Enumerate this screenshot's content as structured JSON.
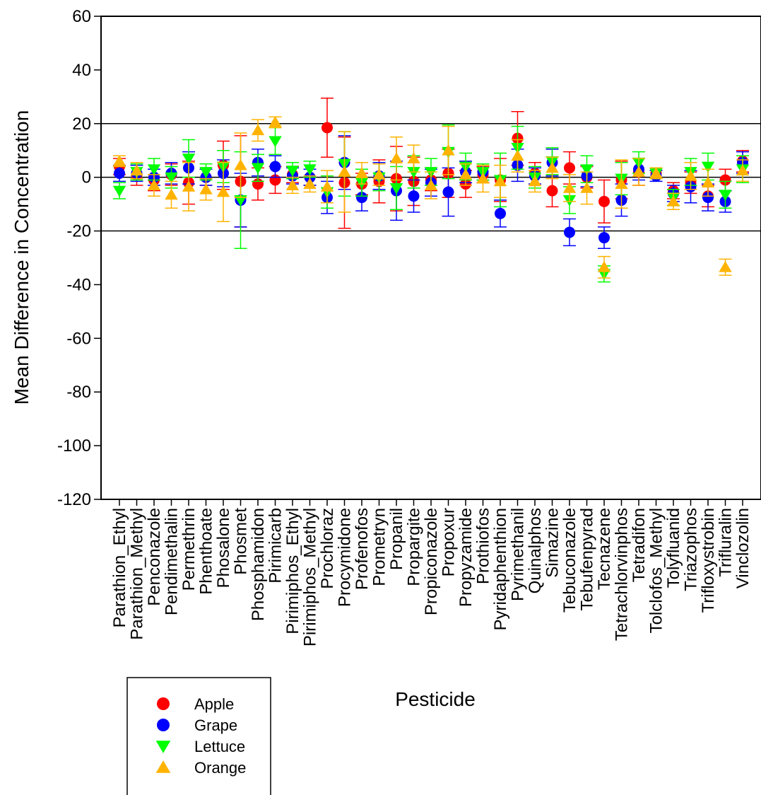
{
  "chart_data": {
    "type": "scatter",
    "xlabel": "Pesticide",
    "ylabel": "Mean Difference in Concentration",
    "ylim": [
      -120,
      60
    ],
    "yticks": [
      60,
      40,
      20,
      0,
      -20,
      -40,
      -60,
      -80,
      -100,
      -120
    ],
    "reference_lines": [
      20,
      0,
      -20
    ],
    "legend_position": "bottom-left",
    "categories": [
      "Parathion_Ethyl",
      "Parathion_Methyl",
      "Penconazole",
      "Pendimethalin",
      "Permethrin",
      "Phenthoate",
      "Phosalone",
      "Phosmet",
      "Phosphamidon",
      "Pirimicarb",
      "Pirimiphos_Ethyl",
      "Pirimiphos_Methyl",
      "Prochloraz",
      "Procymidone",
      "Profenofos",
      "Prometryn",
      "Propanil",
      "Propargite",
      "Propiconazole",
      "Propoxur",
      "Propyzamide",
      "Prothiofos",
      "Pyridaphenthion",
      "Pyrimethanil",
      "Quinalphos",
      "Simazine",
      "Tebuconazole",
      "Tebufenpyrad",
      "Tecnazene",
      "Tetrachlorvinphos",
      "Tetradifon",
      "Tolclofos_Methyl",
      "Tolyfluanid",
      "Triazophos",
      "Trifloxystrobin",
      "Trifluralin",
      "Vinclozolin"
    ],
    "series": [
      {
        "name": "Apple",
        "color": "#ff0000",
        "marker": "circle",
        "values": [
          4,
          1,
          -1,
          1,
          -2,
          0,
          4.5,
          -1.5,
          -2.5,
          -1,
          1,
          0,
          18.5,
          -2,
          -2.5,
          -1.5,
          -0.5,
          -1.5,
          -1,
          1.5,
          -2.5,
          1,
          -1,
          14.5,
          1.5,
          -5,
          3.5,
          0,
          -9,
          -1,
          2,
          1.5,
          -5,
          -2,
          -7,
          -1,
          6
        ],
        "errors": [
          3,
          4,
          4,
          4,
          8,
          3,
          9,
          17,
          6,
          5,
          3,
          3,
          11,
          17,
          4,
          8,
          12,
          9,
          4,
          9,
          5,
          3,
          8,
          10,
          4,
          6,
          6,
          4,
          8,
          7,
          5,
          2,
          3,
          4,
          4,
          4,
          4
        ]
      },
      {
        "name": "Grape",
        "color": "#0000ff",
        "marker": "circle",
        "values": [
          1.5,
          1.5,
          0,
          1.5,
          3.5,
          0,
          1.5,
          -8.5,
          5.5,
          4,
          0.5,
          0,
          -7.5,
          5.5,
          -7.5,
          0.5,
          -5,
          -7,
          -2,
          -5.5,
          2,
          2,
          -13.5,
          4.5,
          0.5,
          5.5,
          -20.5,
          0.5,
          -22.5,
          -8.5,
          3,
          0.5,
          -6,
          -3.5,
          -7.5,
          -9,
          5.5
        ],
        "errors": [
          3,
          3,
          3,
          4,
          6,
          3,
          5,
          10,
          5,
          4,
          3,
          3,
          6,
          10,
          5,
          5,
          11,
          6,
          5,
          9,
          4,
          3,
          5,
          6,
          3,
          5,
          5,
          4,
          4,
          6,
          4,
          2,
          3,
          6,
          5,
          4,
          4
        ]
      },
      {
        "name": "Lettuce",
        "color": "#00ff00",
        "marker": "triangle-down",
        "values": [
          -5,
          2,
          3,
          0,
          7,
          2,
          4,
          -8.5,
          3.5,
          13.5,
          2.5,
          3,
          -5.5,
          5,
          -2,
          0,
          -4,
          2,
          2,
          9.5,
          4,
          2,
          -1,
          11,
          0,
          6,
          -8.5,
          3,
          -36,
          -0.5,
          5.5,
          1.5,
          -7.5,
          2,
          4,
          -6.5,
          3
        ],
        "errors": [
          3,
          3,
          4,
          4,
          7,
          3,
          6,
          18,
          5,
          5,
          3,
          3,
          6,
          12,
          5,
          5,
          8,
          6,
          5,
          10,
          5,
          3,
          10,
          8,
          4,
          5,
          5,
          5,
          3,
          6,
          4,
          2,
          3,
          5,
          5,
          5,
          5
        ]
      },
      {
        "name": "Orange",
        "color": "#ffb300",
        "marker": "triangle-up",
        "values": [
          6,
          2.5,
          -3,
          -6.5,
          -3.5,
          -4.5,
          -5.5,
          4.5,
          17.5,
          20.5,
          -3,
          -2.5,
          -3.5,
          2,
          1.5,
          1,
          7,
          7,
          -3,
          10,
          1,
          -0.5,
          -1.5,
          8,
          -1.5,
          3.5,
          -4,
          -4,
          -33.5,
          -2.5,
          2,
          1.5,
          -9,
          0.5,
          -2,
          -33.5,
          2.5
        ],
        "errors": [
          2,
          3,
          4,
          5,
          9,
          4,
          11,
          12,
          4,
          2,
          3,
          3,
          6,
          15,
          4,
          4,
          8,
          5,
          5,
          9,
          4,
          5,
          6,
          6,
          4,
          4,
          5,
          6,
          4,
          9,
          5,
          2,
          3,
          5,
          5,
          3,
          4
        ]
      }
    ]
  }
}
